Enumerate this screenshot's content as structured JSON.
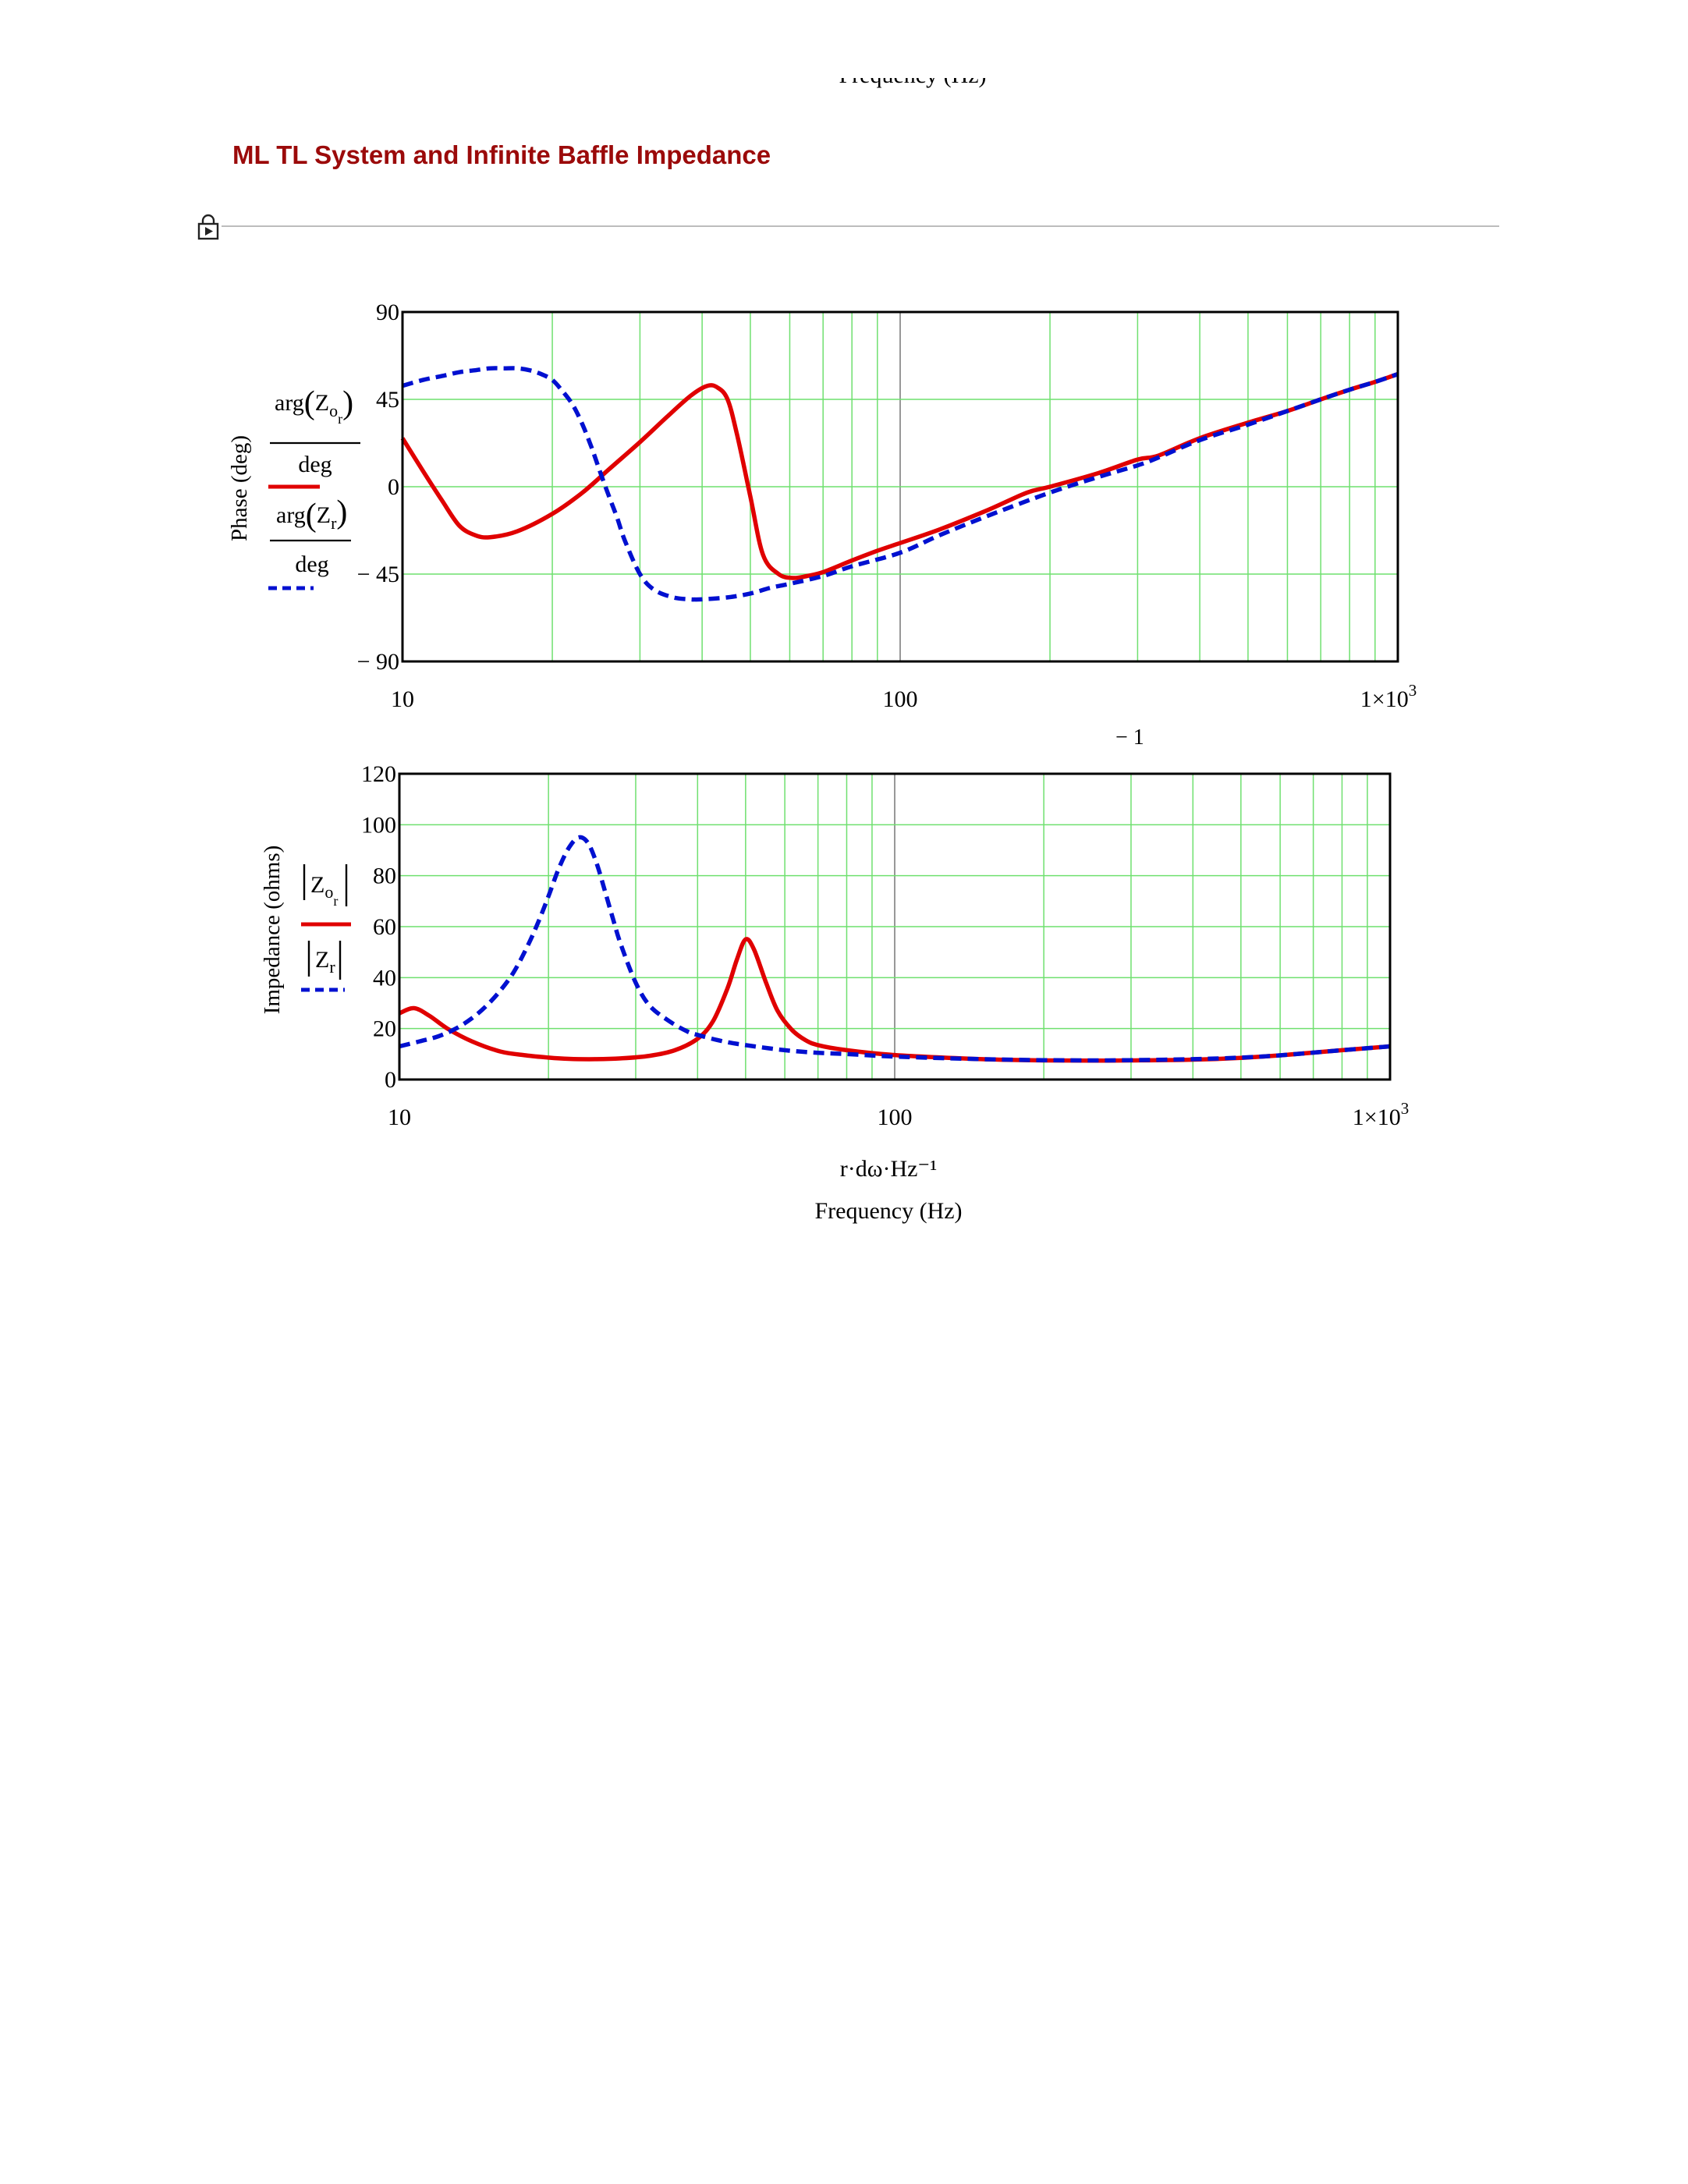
{
  "page": {
    "fragment_text": "Frequency (Hz)",
    "section_title": "ML TL System and Infinite Baffle Impedance"
  },
  "chart_data": [
    {
      "type": "line",
      "x_scale": "log",
      "xlim": [
        10,
        1000
      ],
      "ylim": [
        -90,
        90
      ],
      "grid": true,
      "x_ticks": [
        "10",
        "100",
        "1×10³"
      ],
      "y_ticks": [
        "90",
        "45",
        "0",
        "− 45",
        "− 90"
      ],
      "y_tick_values": [
        90,
        45,
        0,
        -45,
        -90
      ],
      "ylabel": "Phase (deg)",
      "xlabel_fragment": "− 1",
      "legend": {
        "placement": "left",
        "entries": [
          {
            "num_func": "arg",
            "sym": "Z",
            "sub": "o",
            "subsub": "r",
            "den": "deg"
          },
          {
            "num_func": "arg",
            "sym": "Z",
            "sub": "r",
            "den": "deg"
          }
        ]
      },
      "series": [
        {
          "color": "#e00000",
          "style": "solid",
          "x": [
            10,
            11,
            12,
            13,
            14,
            15,
            17,
            20,
            23,
            26,
            30,
            34,
            38,
            41,
            43,
            45,
            47,
            50,
            53,
            57,
            61,
            65,
            70,
            80,
            90,
            100,
            120,
            150,
            180,
            200,
            250,
            300,
            330,
            400,
            500,
            600,
            700,
            800,
            900,
            1000
          ],
          "y": [
            25,
            8,
            -7,
            -20,
            -25,
            -26,
            -23,
            -14,
            -3,
            9,
            23,
            36,
            47,
            52,
            51,
            45,
            27,
            -5,
            -35,
            -45,
            -47,
            -46,
            -44,
            -38,
            -33,
            -29,
            -22,
            -12,
            -3,
            0,
            7,
            14,
            16,
            25,
            33,
            39,
            45,
            50,
            54,
            58
          ]
        },
        {
          "color": "#0010d0",
          "style": "dashed",
          "x": [
            10,
            11,
            12,
            13,
            14,
            15,
            16,
            17,
            18,
            19,
            20,
            21,
            22,
            23,
            24,
            25,
            26,
            27,
            28,
            30,
            32,
            35,
            38,
            40,
            45,
            50,
            55,
            60,
            70,
            80,
            100,
            120,
            150,
            200,
            250,
            300,
            330,
            400,
            500,
            600,
            700,
            800,
            900,
            1000
          ],
          "y": [
            52,
            55,
            57,
            59,
            60,
            61,
            61,
            61,
            60,
            58,
            55,
            49,
            42,
            32,
            20,
            7,
            -5,
            -16,
            -28,
            -45,
            -53,
            -57,
            -58,
            -58,
            -57,
            -55,
            -52,
            -50,
            -46,
            -41,
            -34,
            -25,
            -15,
            -3,
            5,
            11,
            15,
            24,
            32,
            39,
            45,
            50,
            54,
            58
          ]
        }
      ]
    },
    {
      "type": "line",
      "x_scale": "log",
      "xlim": [
        10,
        1000
      ],
      "ylim": [
        0,
        120
      ],
      "grid": true,
      "x_ticks": [
        "10",
        "100",
        "1×10³"
      ],
      "y_ticks": [
        "120",
        "100",
        "80",
        "60",
        "40",
        "20",
        "0"
      ],
      "y_tick_values": [
        120,
        100,
        80,
        60,
        40,
        20,
        0
      ],
      "ylabel": "Impedance (ohms)",
      "xlabel": "r·dω·Hz⁻¹",
      "title_below": "Frequency (Hz)",
      "legend": {
        "placement": "left",
        "entries": [
          {
            "sym": "Z",
            "sub": "o",
            "subsub": "r"
          },
          {
            "sym": "Z",
            "sub": "r"
          }
        ]
      },
      "series": [
        {
          "color": "#e00000",
          "style": "solid",
          "x": [
            10,
            10.7,
            11.5,
            12.5,
            14,
            16,
            18,
            20,
            22,
            25,
            28,
            32,
            36,
            40,
            43,
            46,
            48,
            50,
            52,
            55,
            58,
            62,
            66,
            70,
            80,
            100,
            150,
            200,
            250,
            300,
            400,
            500,
            600,
            800,
            1000
          ],
          "y": [
            26,
            28,
            25,
            20,
            15,
            11,
            9.5,
            8.6,
            8.1,
            8,
            8.3,
            9.3,
            11.5,
            16,
            23,
            36,
            47,
            55,
            51,
            38,
            27,
            19.5,
            15.5,
            13.5,
            11.5,
            9.6,
            8,
            7.5,
            7.4,
            7.5,
            7.8,
            8.5,
            9.5,
            11.5,
            13
          ]
        },
        {
          "color": "#0010d0",
          "style": "dashed",
          "x": [
            10,
            11,
            12,
            13,
            14,
            15,
            16,
            17,
            18,
            19,
            20,
            21,
            22,
            23,
            24,
            25,
            26,
            27,
            28,
            30,
            32,
            35,
            38,
            40,
            45,
            50,
            60,
            70,
            80,
            100,
            150,
            200,
            250,
            300,
            400,
            500,
            600,
            800,
            1000
          ],
          "y": [
            13,
            15,
            17,
            20,
            24,
            29,
            35,
            42,
            51,
            61,
            72,
            83,
            91,
            95,
            93,
            85,
            74,
            63,
            53,
            38,
            29,
            23,
            19,
            17.5,
            15,
            13.5,
            11.5,
            10.5,
            10,
            9,
            8,
            7.6,
            7.5,
            7.6,
            8,
            8.6,
            9.5,
            11.5,
            13
          ]
        }
      ]
    }
  ]
}
